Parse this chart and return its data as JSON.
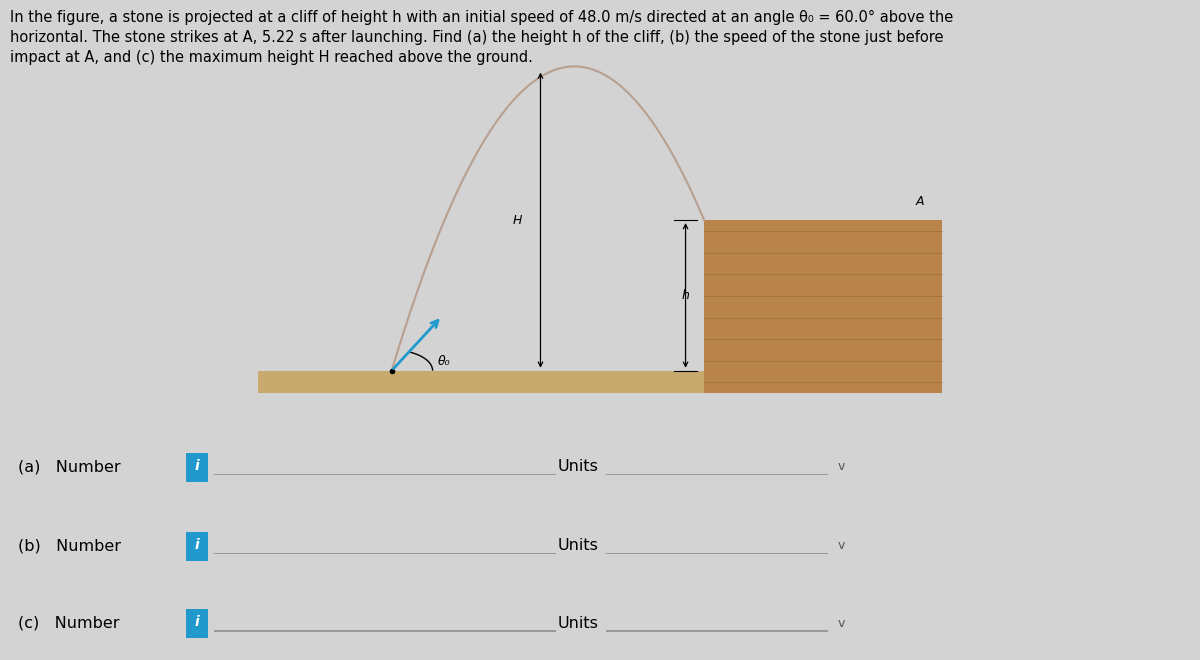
{
  "bg_color": "#d3d3d3",
  "title_text": "In the figure, a stone is projected at a cliff of height h with an initial speed of 48.0 m/s directed at an angle θ₀ = 60.0° above the\nhorizontal. The stone strikes at A, 5.22 s after launching. Find (a) the height h of the cliff, (b) the speed of the stone just before\nimpact at A, and (c) the maximum height H reached above the ground.",
  "title_fontsize": 10.5,
  "ground_color": "#c8a96e",
  "cliff_color": "#b8844a",
  "arrow_color": "#2299cc",
  "trajectory_color": "#b8a090",
  "H_label": "H",
  "h_label": "h",
  "A_label": "A",
  "theta_label": "θ₀",
  "input_rows": [
    {
      "label": "(a)   Number",
      "units_label": "Units"
    },
    {
      "label": "(b)   Number",
      "units_label": "Units"
    },
    {
      "label": "(c)   Number",
      "units_label": "Units"
    }
  ],
  "input_box_color": "#2299cc",
  "input_label_fontsize": 11.5,
  "dropdown_label": "v"
}
